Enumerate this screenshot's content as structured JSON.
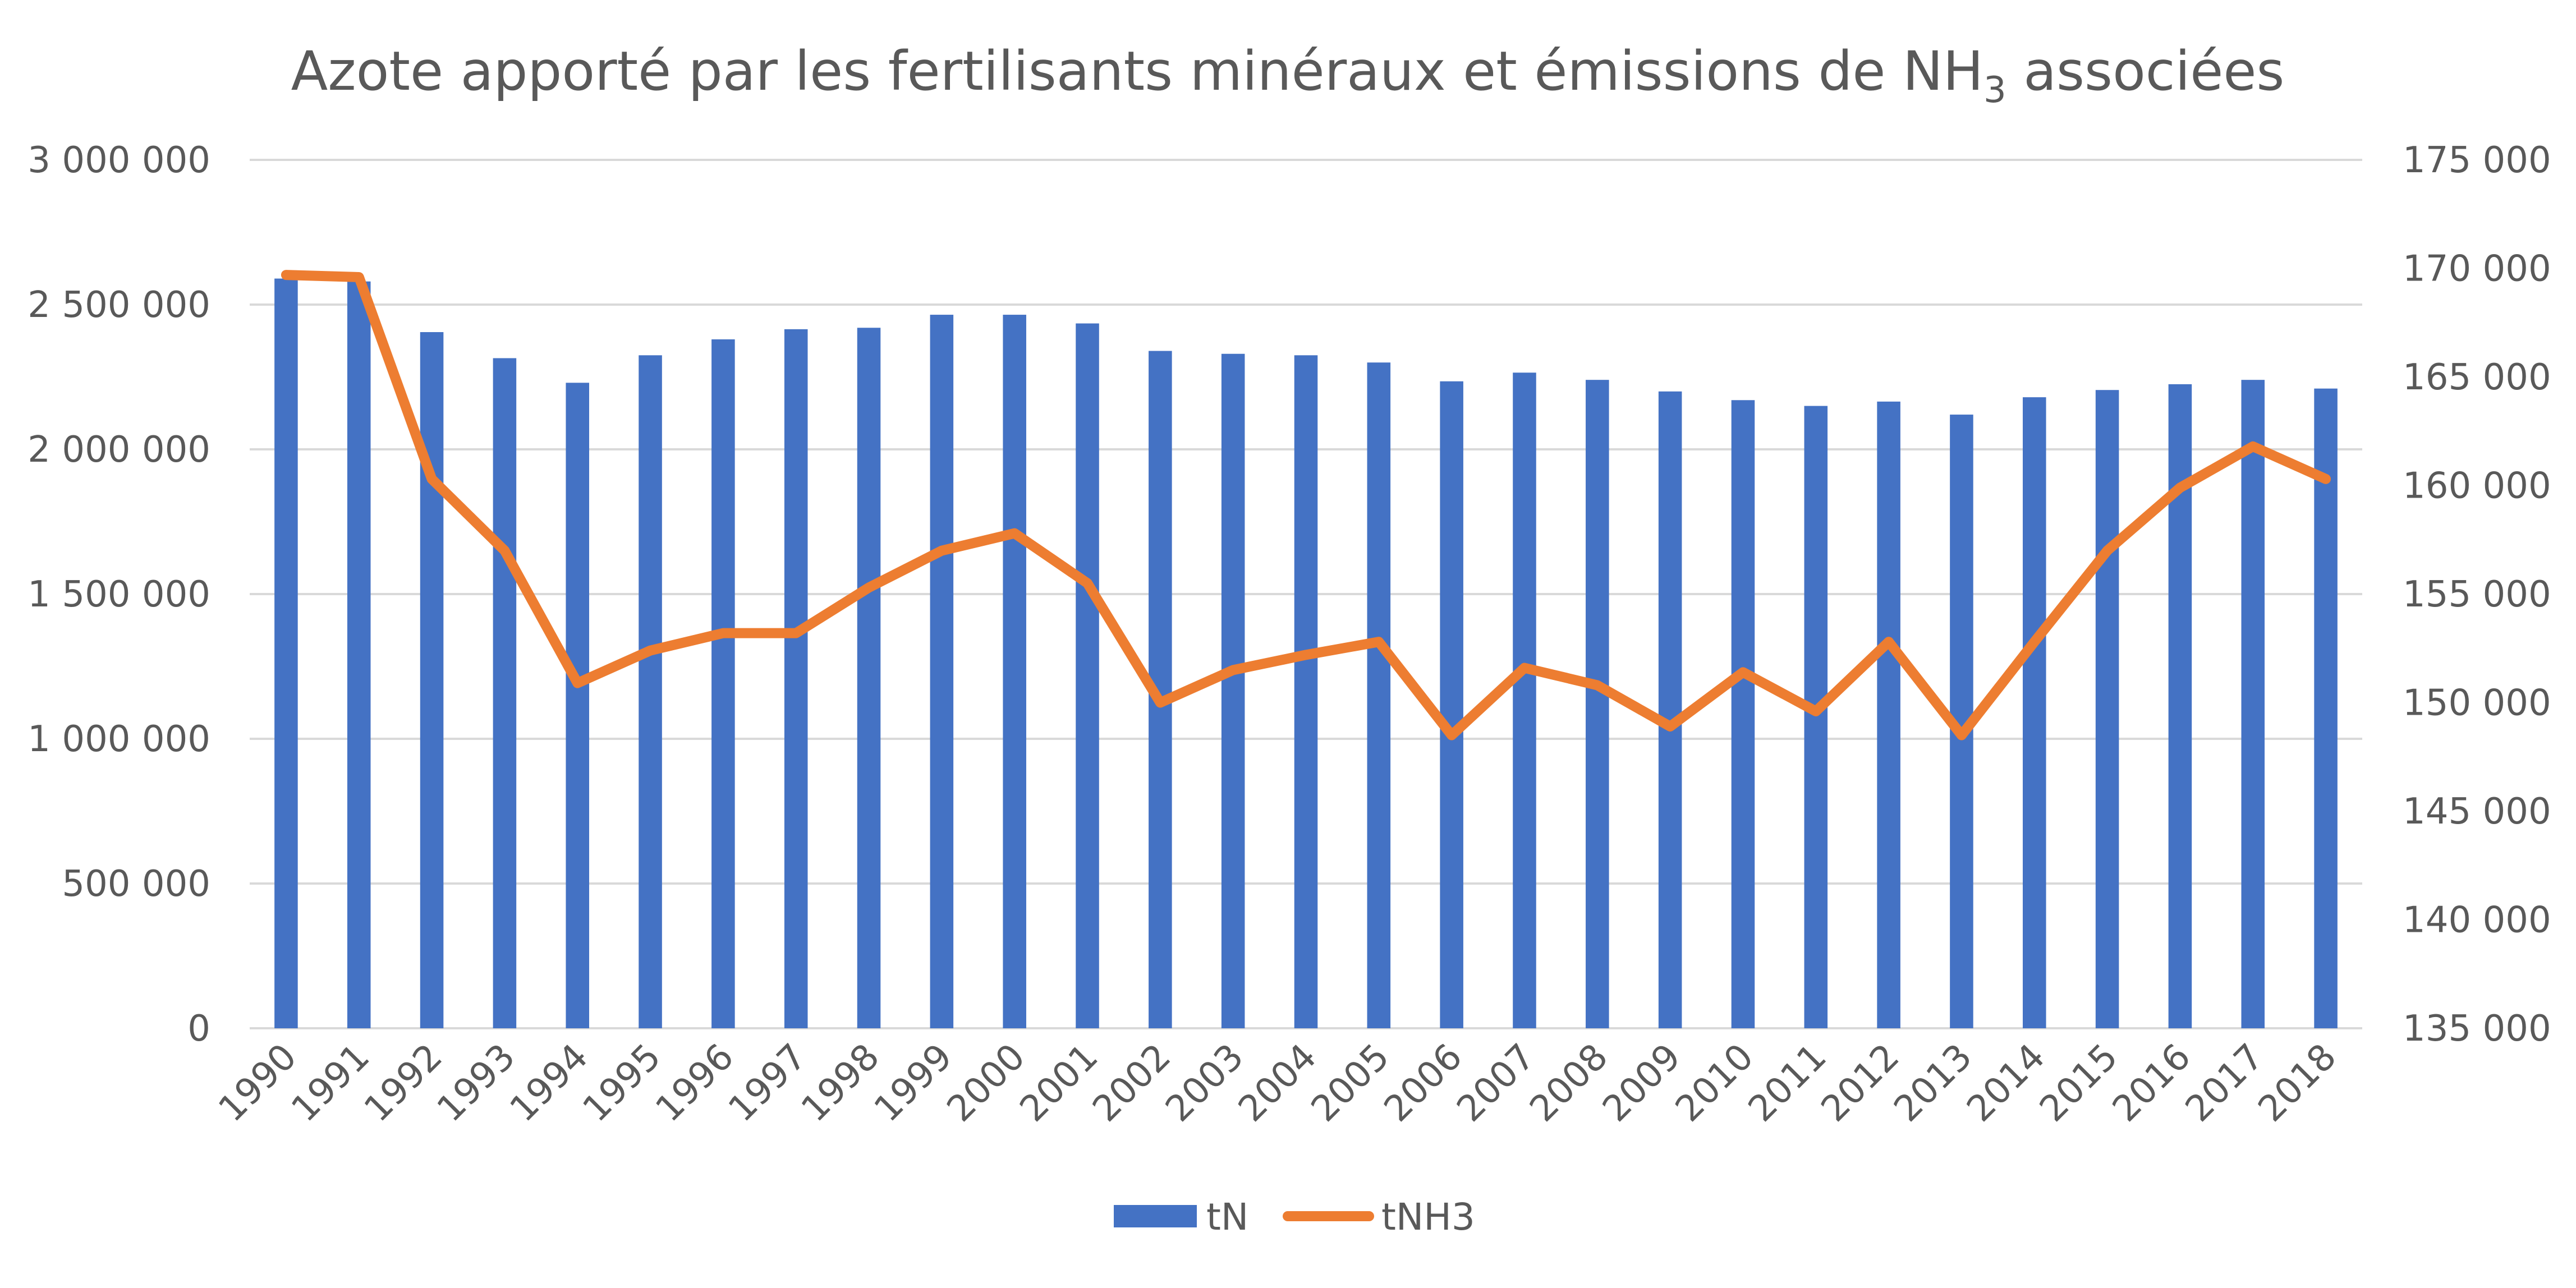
{
  "chart_data": {
    "type": "bar",
    "title": {
      "main": "Azote apporté par les fertilisants minéraux et émissions de NH",
      "sub": "3",
      "end": " associées"
    },
    "categories": [
      "1990",
      "1991",
      "1992",
      "1993",
      "1994",
      "1995",
      "1996",
      "1997",
      "1998",
      "1999",
      "2000",
      "2001",
      "2002",
      "2003",
      "2004",
      "2005",
      "2006",
      "2007",
      "2008",
      "2009",
      "2010",
      "2011",
      "2012",
      "2013",
      "2014",
      "2015",
      "2016",
      "2017",
      "2018"
    ],
    "y_left": {
      "min": 0,
      "max": 3000000,
      "step": 500000,
      "tick_labels": [
        "0",
        "500 000",
        "1 000 000",
        "1 500 000",
        "2 000 000",
        "2 500 000",
        "3 000 000"
      ]
    },
    "y_right": {
      "min": 135000,
      "max": 175000,
      "step": 5000,
      "tick_labels": [
        "135 000",
        "140 000",
        "145 000",
        "150 000",
        "155 000",
        "160 000",
        "165 000",
        "170 000",
        "175 000"
      ]
    },
    "gridlines": true,
    "legend_position": "bottom",
    "series": [
      {
        "name": "tN",
        "type": "bar",
        "axis": "left",
        "color": "#4472C4",
        "values": [
          2590000,
          2580000,
          2405000,
          2315000,
          2230000,
          2325000,
          2380000,
          2415000,
          2420000,
          2465000,
          2465000,
          2435000,
          2340000,
          2330000,
          2325000,
          2300000,
          2235000,
          2265000,
          2240000,
          2200000,
          2170000,
          2150000,
          2165000,
          2120000,
          2180000,
          2205000,
          2225000,
          2240000,
          2210000
        ]
      },
      {
        "name": "tNH3",
        "type": "line",
        "axis": "right",
        "color": "#ED7D31",
        "values": [
          169700,
          169600,
          160300,
          157000,
          150900,
          152400,
          153200,
          153200,
          155300,
          157000,
          157800,
          155500,
          150000,
          151500,
          152200,
          152800,
          148500,
          151600,
          150800,
          148900,
          151400,
          149600,
          152800,
          148500,
          152800,
          157000,
          159900,
          161800,
          160300
        ]
      }
    ]
  }
}
